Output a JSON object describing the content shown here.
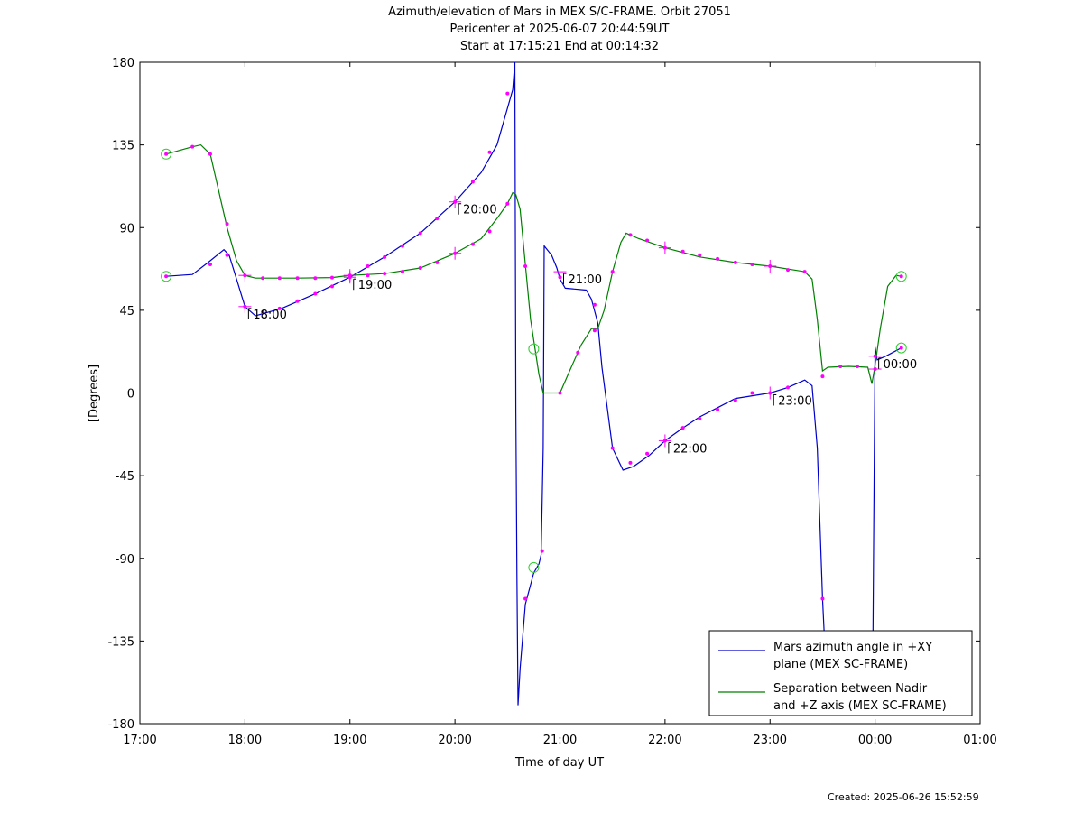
{
  "title_lines": [
    "Azimuth/elevation of Mars in MEX S/C-FRAME.  Orbit 27051",
    "Pericenter at 2025-06-07 20:44:59UT",
    "Start at 17:15:21 End at 00:14:32"
  ],
  "created": "Created: 2025-06-26 15:52:59",
  "chart_data": {
    "type": "line",
    "xlabel": "Time of day UT",
    "ylabel": "[Degrees]",
    "xlim": [
      17.0,
      25.0
    ],
    "ylim": [
      -180,
      180
    ],
    "xticks": [
      17,
      18,
      19,
      20,
      21,
      22,
      23,
      24,
      25
    ],
    "xtick_labels": [
      "17:00",
      "18:00",
      "19:00",
      "20:00",
      "21:00",
      "22:00",
      "23:00",
      "00:00",
      "01:00"
    ],
    "yticks": [
      180,
      135,
      90,
      45,
      0,
      -45,
      -90,
      -135,
      -180
    ],
    "ytick_labels": [
      "180",
      "135",
      "90",
      "45",
      "0",
      "-45",
      "-90",
      "-135",
      "-180"
    ],
    "grid": false,
    "legend_position": "bottom-right",
    "colors": {
      "azimuth": "#0000cc",
      "separation": "#008000",
      "marker": "#ff00ff",
      "endpoint": "#33cc33"
    },
    "series": [
      {
        "name": "Mars azimuth angle in +XY plane (MEX SC-FRAME)",
        "legend_lines": [
          "Mars azimuth angle in +XY",
          "plane (MEX SC-FRAME)"
        ],
        "color": "#0000cc",
        "points": [
          [
            17.25,
            63.5
          ],
          [
            17.5,
            64.5
          ],
          [
            17.65,
            71
          ],
          [
            17.8,
            78
          ],
          [
            17.85,
            75
          ],
          [
            17.92,
            62
          ],
          [
            18.0,
            47
          ],
          [
            18.1,
            42
          ],
          [
            18.35,
            46
          ],
          [
            18.67,
            54
          ],
          [
            19.0,
            63
          ],
          [
            19.33,
            74
          ],
          [
            19.67,
            87
          ],
          [
            20.0,
            104
          ],
          [
            20.25,
            120
          ],
          [
            20.4,
            135
          ],
          [
            20.5,
            155
          ],
          [
            20.55,
            165
          ],
          [
            20.57,
            180
          ],
          [
            20.58,
            -10
          ],
          [
            20.59,
            -100
          ],
          [
            20.6,
            -170
          ],
          [
            20.62,
            -150
          ],
          [
            20.67,
            -115
          ],
          [
            20.75,
            -98
          ],
          [
            20.8,
            -93
          ],
          [
            20.82,
            -88
          ],
          [
            20.84,
            -30
          ],
          [
            20.85,
            80
          ],
          [
            20.92,
            75
          ],
          [
            20.97,
            68
          ],
          [
            21.0,
            62
          ],
          [
            21.05,
            57
          ],
          [
            21.25,
            56
          ],
          [
            21.3,
            51
          ],
          [
            21.36,
            38
          ],
          [
            21.4,
            14
          ],
          [
            21.5,
            -30
          ],
          [
            21.6,
            -42
          ],
          [
            21.7,
            -40
          ],
          [
            21.85,
            -34
          ],
          [
            22.0,
            -26
          ],
          [
            22.17,
            -19
          ],
          [
            22.33,
            -13
          ],
          [
            22.5,
            -8
          ],
          [
            22.67,
            -3
          ],
          [
            23.0,
            0
          ],
          [
            23.17,
            3
          ],
          [
            23.33,
            7
          ],
          [
            23.4,
            4
          ],
          [
            23.45,
            -30
          ],
          [
            23.5,
            -112
          ],
          [
            23.54,
            -160
          ],
          [
            23.9,
            -160
          ],
          [
            23.98,
            -130
          ],
          [
            24.0,
            25
          ],
          [
            24.02,
            18
          ],
          [
            24.1,
            20
          ],
          [
            24.2,
            23
          ],
          [
            24.25,
            24.5
          ]
        ],
        "markers": [
          [
            17.25,
            63.5
          ],
          [
            17.67,
            70
          ],
          [
            17.83,
            75
          ],
          [
            18.0,
            47
          ],
          [
            18.17,
            44
          ],
          [
            18.33,
            46
          ],
          [
            18.5,
            50
          ],
          [
            18.67,
            54
          ],
          [
            18.83,
            58
          ],
          [
            19.0,
            63
          ],
          [
            19.17,
            69
          ],
          [
            19.33,
            74
          ],
          [
            19.5,
            80
          ],
          [
            19.67,
            87
          ],
          [
            19.83,
            95
          ],
          [
            20.0,
            104
          ],
          [
            20.17,
            115
          ],
          [
            20.33,
            131
          ],
          [
            20.5,
            163
          ],
          [
            20.67,
            -112
          ],
          [
            20.83,
            -86
          ],
          [
            21.0,
            63
          ],
          [
            21.33,
            48
          ],
          [
            21.5,
            -30
          ],
          [
            21.67,
            -38
          ],
          [
            21.83,
            -33
          ],
          [
            22.0,
            -26
          ],
          [
            22.17,
            -19
          ],
          [
            22.33,
            -14
          ],
          [
            22.5,
            -9
          ],
          [
            22.67,
            -4
          ],
          [
            22.83,
            0
          ],
          [
            23.0,
            0
          ],
          [
            23.17,
            3
          ],
          [
            23.5,
            -112
          ],
          [
            24.0,
            13
          ],
          [
            24.25,
            24.5
          ]
        ],
        "hour_marks": [
          [
            18.0,
            47
          ],
          [
            19.0,
            63
          ],
          [
            20.0,
            104
          ],
          [
            21.0,
            66
          ],
          [
            22.0,
            -26
          ],
          [
            23.0,
            0
          ],
          [
            24.0,
            13
          ]
        ],
        "endpoints": [
          [
            17.25,
            63.5
          ],
          [
            20.75,
            -95
          ],
          [
            24.25,
            24.5
          ]
        ]
      },
      {
        "name": "Separation between Nadir and +Z axis (MEX SC-FRAME)",
        "legend_lines": [
          "Separation between Nadir",
          "and +Z axis (MEX SC-FRAME)"
        ],
        "color": "#008000",
        "points": [
          [
            17.25,
            130
          ],
          [
            17.5,
            134
          ],
          [
            17.58,
            135
          ],
          [
            17.67,
            130
          ],
          [
            17.75,
            110
          ],
          [
            17.83,
            90
          ],
          [
            17.92,
            72
          ],
          [
            18.0,
            64
          ],
          [
            18.1,
            62.5
          ],
          [
            18.5,
            62.5
          ],
          [
            18.83,
            62.8
          ],
          [
            19.0,
            64
          ],
          [
            19.33,
            65
          ],
          [
            19.67,
            68
          ],
          [
            20.0,
            76
          ],
          [
            20.25,
            84
          ],
          [
            20.4,
            95
          ],
          [
            20.5,
            103
          ],
          [
            20.55,
            109
          ],
          [
            20.58,
            108
          ],
          [
            20.62,
            100
          ],
          [
            20.67,
            70
          ],
          [
            20.72,
            40
          ],
          [
            20.8,
            10
          ],
          [
            20.84,
            0
          ],
          [
            20.85,
            0
          ],
          [
            21.0,
            0
          ],
          [
            21.1,
            13
          ],
          [
            21.2,
            26
          ],
          [
            21.3,
            35
          ],
          [
            21.36,
            35
          ],
          [
            21.42,
            45
          ],
          [
            21.5,
            66
          ],
          [
            21.58,
            82
          ],
          [
            21.63,
            87
          ],
          [
            21.75,
            84
          ],
          [
            22.0,
            79
          ],
          [
            22.33,
            74
          ],
          [
            22.67,
            71
          ],
          [
            23.0,
            69
          ],
          [
            23.33,
            66
          ],
          [
            23.4,
            62
          ],
          [
            23.45,
            40
          ],
          [
            23.5,
            12
          ],
          [
            23.55,
            14
          ],
          [
            23.75,
            14.5
          ],
          [
            23.93,
            14
          ],
          [
            23.97,
            5
          ],
          [
            24.0,
            15
          ],
          [
            24.05,
            35
          ],
          [
            24.12,
            58
          ],
          [
            24.2,
            64
          ],
          [
            24.25,
            63.5
          ]
        ],
        "markers": [
          [
            17.25,
            130
          ],
          [
            17.5,
            134
          ],
          [
            17.67,
            130
          ],
          [
            17.83,
            92
          ],
          [
            18.0,
            64
          ],
          [
            18.17,
            62.5
          ],
          [
            18.33,
            62.5
          ],
          [
            18.5,
            62.5
          ],
          [
            18.67,
            62.5
          ],
          [
            18.83,
            62.8
          ],
          [
            19.0,
            64
          ],
          [
            19.17,
            64
          ],
          [
            19.33,
            65
          ],
          [
            19.5,
            66
          ],
          [
            19.67,
            68
          ],
          [
            19.83,
            71
          ],
          [
            20.0,
            76
          ],
          [
            20.17,
            81
          ],
          [
            20.33,
            88
          ],
          [
            20.5,
            103
          ],
          [
            20.67,
            69
          ],
          [
            21.0,
            0
          ],
          [
            21.17,
            22
          ],
          [
            21.33,
            34
          ],
          [
            21.5,
            66
          ],
          [
            21.67,
            86
          ],
          [
            21.83,
            83
          ],
          [
            22.0,
            79
          ],
          [
            22.17,
            77
          ],
          [
            22.33,
            75
          ],
          [
            22.5,
            73
          ],
          [
            22.67,
            71
          ],
          [
            22.83,
            70
          ],
          [
            23.0,
            69
          ],
          [
            23.17,
            67
          ],
          [
            23.33,
            66
          ],
          [
            23.5,
            9
          ],
          [
            23.67,
            14.5
          ],
          [
            23.83,
            14.5
          ],
          [
            24.0,
            20
          ],
          [
            24.25,
            63.5
          ]
        ],
        "hour_marks": [
          [
            18.0,
            64
          ],
          [
            19.0,
            64
          ],
          [
            20.0,
            76
          ],
          [
            21.0,
            0
          ],
          [
            22.0,
            79
          ],
          [
            23.0,
            69
          ],
          [
            24.0,
            20
          ]
        ],
        "endpoints": [
          [
            17.25,
            130
          ],
          [
            20.75,
            24
          ],
          [
            24.25,
            63.5
          ]
        ]
      }
    ],
    "annotations": [
      {
        "x": 18.0,
        "y": 47,
        "text": "18:00"
      },
      {
        "x": 19.0,
        "y": 63,
        "text": "19:00"
      },
      {
        "x": 20.0,
        "y": 104,
        "text": "20:00"
      },
      {
        "x": 21.0,
        "y": 66,
        "text": "21:00"
      },
      {
        "x": 22.0,
        "y": -26,
        "text": "22:00"
      },
      {
        "x": 23.0,
        "y": 0,
        "text": "23:00"
      },
      {
        "x": 24.0,
        "y": 20,
        "text": "00:00"
      }
    ]
  }
}
